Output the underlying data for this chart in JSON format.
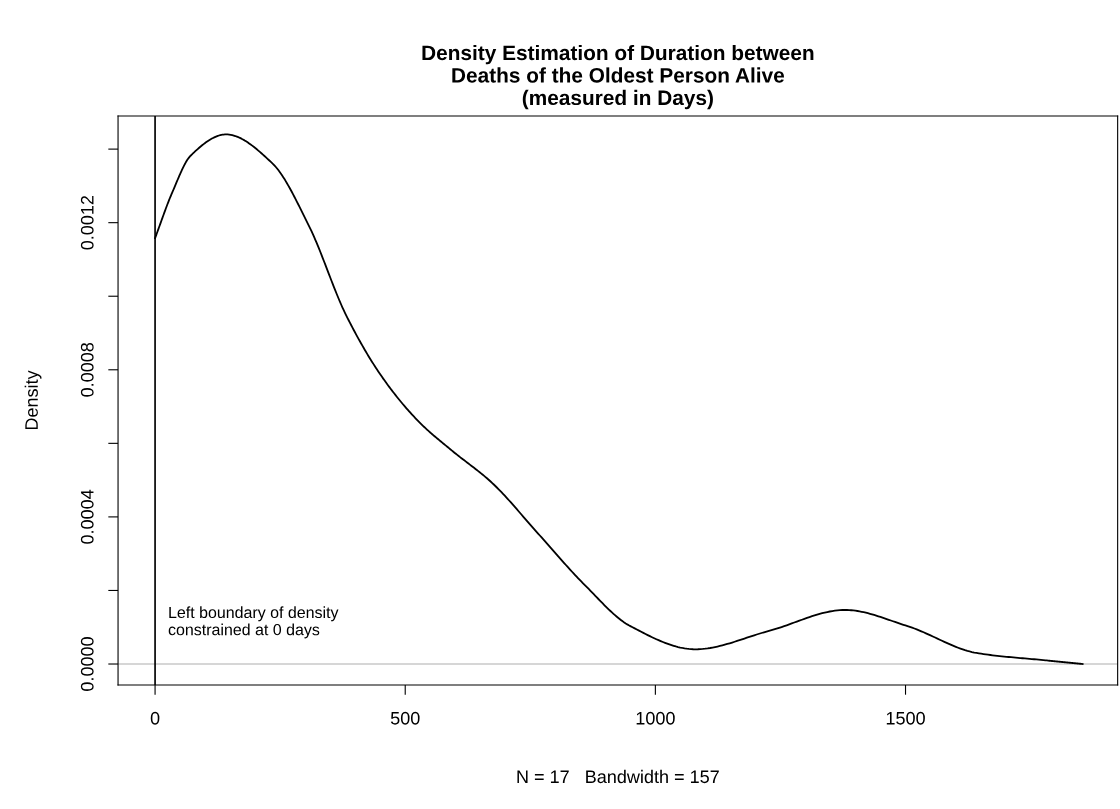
{
  "chart_data": {
    "type": "line",
    "title": "Density Estimation of Duration between\nDeaths of the Oldest Person Alive\n(measured in Days)",
    "xlabel": "N = 17   Bandwidth = 157",
    "ylabel": "Density",
    "x": [
      0,
      34,
      71,
      142,
      234,
      308,
      382,
      456,
      530,
      590,
      674,
      766,
      858,
      950,
      1080,
      1227,
      1379,
      1504,
      1642,
      1780,
      1854
    ],
    "series": [
      {
        "color": "#000000",
        "values": [
          0.001158,
          0.001281,
          0.001382,
          0.00144,
          0.001362,
          0.00119,
          0.000948,
          0.000776,
          0.000655,
          0.000584,
          0.000492,
          0.000354,
          0.000216,
          0.000103,
          4e-05,
          9e-05,
          0.000147,
          0.000103,
          3e-05,
          1e-05,
          0.0
        ]
      }
    ],
    "xlim": [
      -74,
      1924
    ],
    "ylim": [
      -5.7e-05,
      0.00149
    ],
    "xticks": [
      0,
      500,
      1000,
      1500
    ],
    "yticks": [
      {
        "value": 0,
        "label": "0.0000"
      },
      {
        "value": 0.0002,
        "label": null
      },
      {
        "value": 0.0004,
        "label": "0.0004"
      },
      {
        "value": 0.0006,
        "label": null
      },
      {
        "value": 0.0008,
        "label": "0.0008"
      },
      {
        "value": 0.001,
        "label": null
      },
      {
        "value": 0.0012,
        "label": "0.0012"
      },
      {
        "value": 0.0014,
        "label": null
      }
    ],
    "ref_lines": [
      {
        "axis": "y",
        "value": 0,
        "color": "#c8c8c8"
      },
      {
        "axis": "x",
        "value": 0,
        "color": "#000000"
      }
    ],
    "annotations": [
      "Left boundary of density\nconstrained at 0 days"
    ],
    "grid": false,
    "legend": false,
    "marker": "none",
    "line_style": "solid"
  }
}
